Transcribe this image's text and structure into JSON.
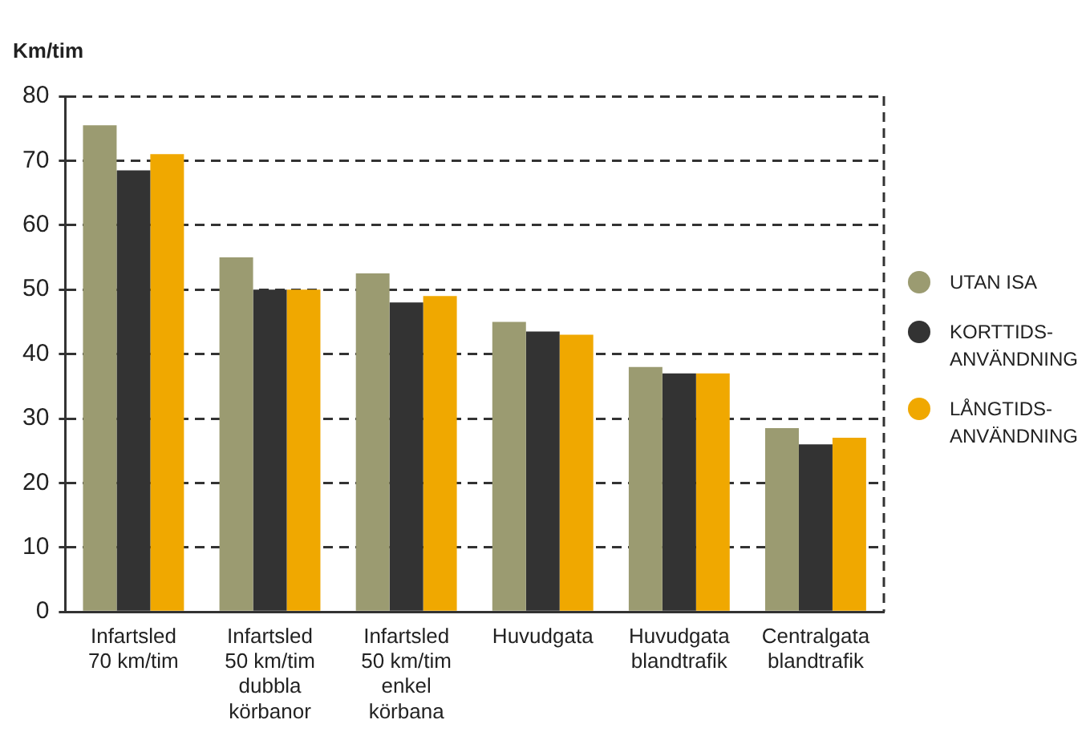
{
  "chart_data": {
    "type": "bar",
    "ylabel": "Km/tim",
    "categories": [
      "Infartsled\n70 km/tim",
      "Infartsled\n50 km/tim\ndubbla\nkörbanor",
      "Infartsled\n50 km/tim\nenkel\nkörbana",
      "Huvudgata",
      "Huvudgata\nblandtrafik",
      "Centralgata\nblandtrafik"
    ],
    "series": [
      {
        "name": "UTAN ISA",
        "color": "#9b9b71",
        "values": [
          75.5,
          55,
          52.5,
          45,
          38,
          28.5
        ]
      },
      {
        "name": "KORTTIDS-ANVÄNDNING",
        "color": "#333333",
        "values": [
          68.5,
          50,
          48,
          43.5,
          37,
          26
        ]
      },
      {
        "name": "LÅNGTIDS-ANVÄNDNING",
        "color": "#f0a800",
        "values": [
          71,
          50,
          49,
          43,
          37,
          27
        ]
      }
    ],
    "ylim": [
      0,
      80
    ],
    "yticks": [
      0,
      10,
      20,
      30,
      40,
      50,
      60,
      70,
      80
    ],
    "grid": "y",
    "legend": "right",
    "marker": "circle"
  }
}
